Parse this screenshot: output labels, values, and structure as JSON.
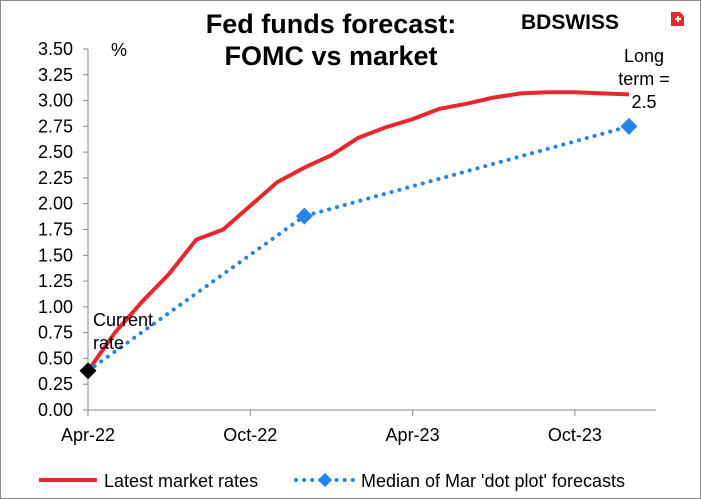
{
  "chart_data": {
    "type": "line",
    "title": [
      "Fed funds forecast:",
      "FOMC vs market"
    ],
    "ylabel": "%",
    "xlabel": "",
    "ylim": [
      0,
      3.5
    ],
    "yticks": [
      "0.00",
      "0.25",
      "0.50",
      "0.75",
      "1.00",
      "1.25",
      "1.50",
      "1.75",
      "2.00",
      "2.25",
      "2.50",
      "2.75",
      "3.00",
      "3.25",
      "3.50"
    ],
    "xticks": [
      "Apr-22",
      "Oct-22",
      "Apr-23",
      "Oct-23"
    ],
    "xrange": [
      "2022-04",
      "2024-01"
    ],
    "legend": "bottom",
    "grid": false,
    "series": [
      {
        "name": "Latest market rates",
        "color": "#e8262d",
        "style": "solid",
        "points": [
          [
            "2022-04",
            0.38
          ],
          [
            "2022-05",
            0.75
          ],
          [
            "2022-06",
            1.05
          ],
          [
            "2022-07",
            1.32
          ],
          [
            "2022-08",
            1.65
          ],
          [
            "2022-09",
            1.75
          ],
          [
            "2022-10",
            1.98
          ],
          [
            "2022-11",
            2.21
          ],
          [
            "2022-12",
            2.35
          ],
          [
            "2023-01",
            2.47
          ],
          [
            "2023-02",
            2.64
          ],
          [
            "2023-03",
            2.74
          ],
          [
            "2023-04",
            2.82
          ],
          [
            "2023-05",
            2.92
          ],
          [
            "2023-06",
            2.97
          ],
          [
            "2023-07",
            3.03
          ],
          [
            "2023-08",
            3.07
          ],
          [
            "2023-09",
            3.08
          ],
          [
            "2023-10",
            3.08
          ],
          [
            "2023-11",
            3.07
          ],
          [
            "2023-12",
            3.06
          ]
        ]
      },
      {
        "name": "Median of Mar 'dot plot' forecasts",
        "color": "#2584e8",
        "style": "dotted",
        "points": [
          [
            "2022-04",
            0.38
          ],
          [
            "2022-12",
            1.88
          ],
          [
            "2023-12",
            2.75
          ]
        ],
        "markers": [
          [
            "2022-12",
            1.88
          ],
          [
            "2023-12",
            2.75
          ]
        ]
      }
    ],
    "current_point": {
      "x": "2022-04",
      "y": 0.38,
      "color": "#000000"
    },
    "annotations": [
      {
        "lines": [
          "Current",
          "rate"
        ]
      },
      {
        "lines": [
          "Long",
          "term =",
          "2.5"
        ]
      }
    ]
  },
  "logo": {
    "text_bd": "BD",
    "text_swiss": "SWISS",
    "color_bd": "#e8262d",
    "color_swiss": "#e8262d"
  }
}
